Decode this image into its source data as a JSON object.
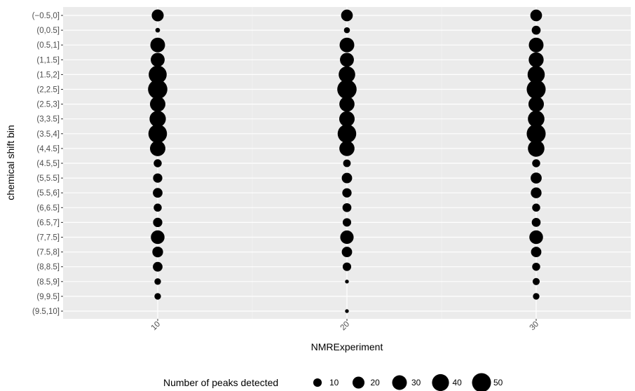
{
  "chart_data": {
    "type": "scatter",
    "title": "",
    "xlabel": "NMRExperiment",
    "ylabel": "chemical shift bin",
    "x_ticks": [
      "10",
      "20",
      "30"
    ],
    "xlim": [
      5,
      35
    ],
    "categories": [
      "(−0.5,0]",
      "(0,0.5]",
      "(0.5,1]",
      "(1,1.5]",
      "(1.5,2]",
      "(2,2.5]",
      "(2.5,3]",
      "(3,3.5]",
      "(3.5,4]",
      "(4,4.5]",
      "(4.5,5]",
      "(5,5.5]",
      "(5.5,6]",
      "(6,6.5]",
      "(6.5,7]",
      "(7,7.5]",
      "(7.5,8]",
      "(8,8.5]",
      "(8.5,9]",
      "(9,9.5]",
      "(9.5,10]"
    ],
    "grid": true,
    "background": "#ebebeb",
    "point_color": "#000000",
    "series": [
      {
        "x": 10,
        "sizes": [
          20,
          3,
          30,
          27,
          45,
          52,
          33,
          37,
          48,
          33,
          9,
          12,
          13,
          9,
          12,
          26,
          16,
          13,
          6,
          6,
          null
        ]
      },
      {
        "x": 20,
        "sizes": [
          19,
          5,
          30,
          27,
          38,
          52,
          32,
          33,
          48,
          32,
          8,
          15,
          12,
          11,
          10,
          25,
          15,
          10,
          2,
          null,
          2
        ]
      },
      {
        "x": 30,
        "sizes": [
          19,
          11,
          30,
          31,
          41,
          50,
          33,
          38,
          50,
          38,
          9,
          17,
          16,
          9,
          11,
          26,
          15,
          9,
          7,
          6,
          null
        ]
      }
    ],
    "legend": {
      "title": "Number of peaks detected",
      "position": "bottom",
      "values": [
        10,
        20,
        30,
        40,
        50
      ]
    }
  }
}
